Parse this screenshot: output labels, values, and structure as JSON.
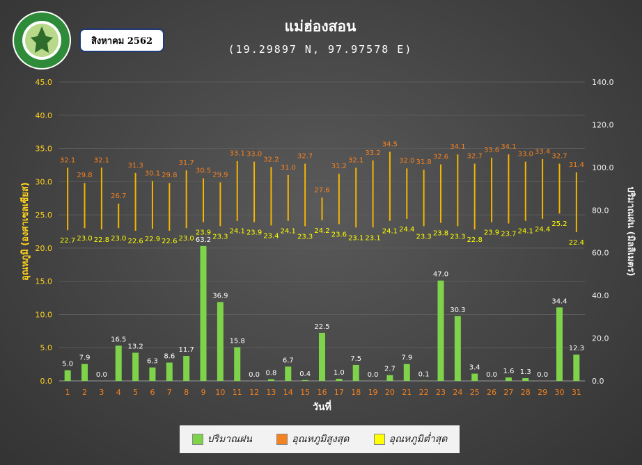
{
  "header": {
    "month_label": "สิงหาคม 2562",
    "station": "แม่ฮ่องสอน",
    "coords": "(19.29897 N, 97.97578 E)"
  },
  "legend": {
    "rain": "ปริมาณฝน",
    "tmax": "อุณหภูมิสูงสุด",
    "tmin": "อุณหภูมิต่ำสุด"
  },
  "colors": {
    "rain": "#7ed34a",
    "tmax_label": "#f58220",
    "tmin_label": "#ffff00",
    "range_bar": "#f5b400",
    "axis_label_left": "#ffd21f",
    "axis_label_right": "#f0f0f0",
    "day_tick": "#f58220"
  },
  "chart_data": {
    "type": "bar",
    "title": "แม่ฮ่องสอน",
    "subtitle": "(19.29897 N, 97.97578 E)",
    "xlabel": "วันที่",
    "ylabel_left": "อุณหภูมิ (องศาเซลเซียส)",
    "ylabel_right": "ปริมาณฝน (มิลลิเมตร)",
    "ylim_left": [
      0,
      45
    ],
    "ylim_right": [
      0,
      140
    ],
    "yticks_left": [
      "0.0",
      "5.0",
      "10.0",
      "15.0",
      "20.0",
      "25.0",
      "30.0",
      "35.0",
      "40.0",
      "45.0"
    ],
    "yticks_right": [
      "0.0",
      "20.0",
      "40.0",
      "60.0",
      "80.0",
      "100.0",
      "120.0",
      "140.0"
    ],
    "grid": true,
    "legend_position": "bottom",
    "days": [
      "1",
      "2",
      "3",
      "4",
      "5",
      "6",
      "7",
      "8",
      "9",
      "10",
      "11",
      "12",
      "13",
      "14",
      "15",
      "16",
      "17",
      "18",
      "19",
      "20",
      "21",
      "22",
      "23",
      "24",
      "25",
      "26",
      "27",
      "28",
      "29",
      "30",
      "31"
    ],
    "rain_labels": [
      "5.0",
      "7.9",
      "0.0",
      "16.5",
      "13.2",
      "6.3",
      "8.6",
      "11.7",
      "63.2",
      "36.9",
      "15.8",
      "0.0",
      "0.8",
      "6.7",
      "0.4",
      "22.5",
      "1.0",
      "7.5",
      "0.0",
      "2.7",
      "7.9",
      "0.1",
      "47.0",
      "30.3",
      "3.4",
      "0.0",
      "1.6",
      "1.3",
      "0.0",
      "34.4",
      "12.3"
    ],
    "tmax_labels": [
      "32.1",
      "29.8",
      "32.1",
      "26.7",
      "31.3",
      "30.1",
      "29.8",
      "31.7",
      "30.5",
      "29.9",
      "33.1",
      "33.0",
      "32.2",
      "31.0",
      "32.7",
      "27.6",
      "31.2",
      "32.1",
      "33.2",
      "34.5",
      "32.0",
      "31.8",
      "32.6",
      "34.1",
      "32.7",
      "33.6",
      "34.1",
      "33.0",
      "33.4",
      "32.7",
      "31.4"
    ],
    "tmin_labels": [
      "22.7",
      "23.0",
      "22.8",
      "23.0",
      "22.6",
      "22.9",
      "22.6",
      "23.0",
      "23.9",
      "23.3",
      "24.1",
      "23.9",
      "23.4",
      "24.1",
      "23.3",
      "24.2",
      "23.6",
      "23.1",
      "23.1",
      "24.1",
      "24.4",
      "23.3",
      "23.8",
      "23.3",
      "22.8",
      "23.9",
      "23.7",
      "24.1",
      "24.4",
      "25.2",
      "22.4"
    ]
  }
}
